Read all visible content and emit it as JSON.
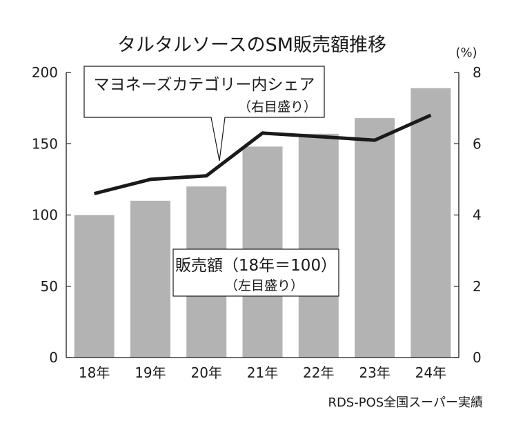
{
  "chart_data": {
    "type": "bar",
    "title": "タルタルソースのSM販売額推移",
    "categories": [
      "18年",
      "19年",
      "20年",
      "21年",
      "22年",
      "23年",
      "24年"
    ],
    "series": [
      {
        "name": "販売額（18年＝100）",
        "note": "（左目盛り）",
        "type": "bar",
        "axis": "left",
        "values": [
          100,
          110,
          120,
          148,
          157,
          168,
          189
        ]
      },
      {
        "name": "マヨネーズカテゴリー内シェア",
        "note": "（右目盛り）",
        "type": "line",
        "axis": "right",
        "values": [
          4.6,
          5.0,
          5.1,
          6.3,
          6.2,
          6.1,
          6.8
        ]
      }
    ],
    "left_axis": {
      "ylim": [
        0,
        200
      ],
      "ticks": [
        "0",
        "50",
        "100",
        "150",
        "200"
      ]
    },
    "right_axis": {
      "ylim": [
        0,
        8
      ],
      "ticks": [
        "0",
        "2",
        "4",
        "6",
        "8"
      ],
      "unit": "(%)"
    },
    "source": "RDS-POS全国スーパー実績",
    "colors": {
      "bar": "#b3b3b3",
      "line": "#1a1a1a",
      "axis": "#1a1a1a"
    }
  }
}
